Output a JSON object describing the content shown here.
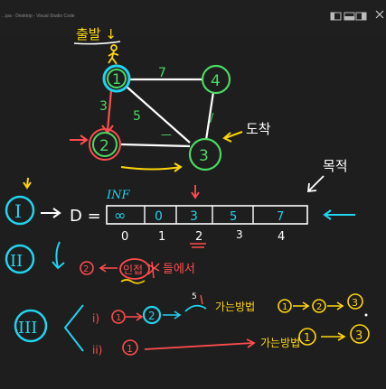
{
  "window": {
    "title": "...ipa - Desktop - Visual Studio Code"
  },
  "graph": {
    "start_label": "출발 ↓",
    "arrive_label": "도착",
    "nodes": [
      "1",
      "2",
      "3",
      "4"
    ],
    "edges": [
      {
        "id": "1-4",
        "weight": "7"
      },
      {
        "id": "1-2",
        "weight": "3"
      },
      {
        "id": "1-3",
        "weight": "5"
      },
      {
        "id": "2-3",
        "weight": "—"
      },
      {
        "id": "4-3",
        "weight": "/"
      }
    ]
  },
  "notes": {
    "step1": "I",
    "step2": "II",
    "step3": "III",
    "d_label": "D =",
    "inf_label": "INF",
    "target_label": "목적",
    "array": {
      "cells": [
        "∞",
        "0",
        "3",
        "5",
        "7"
      ],
      "indices": [
        "0",
        "1",
        "2",
        "3",
        "4"
      ]
    },
    "step2_text": {
      "num": "2",
      "circled": "인접",
      "suffix": "들에서"
    },
    "step3_text": {
      "line1_prefix": "i) ",
      "line1_a": "1",
      "line1_b": "2",
      "line1_small": "5",
      "line1_desc": "가는방법",
      "line1_path_a": "1",
      "line1_path_b": "2",
      "line1_path_c": "3",
      "line2_prefix": "ii) ",
      "line2_a": "1",
      "line2_desc": "가는방법",
      "line2_path_a": "1",
      "line2_path_b": "3"
    }
  }
}
